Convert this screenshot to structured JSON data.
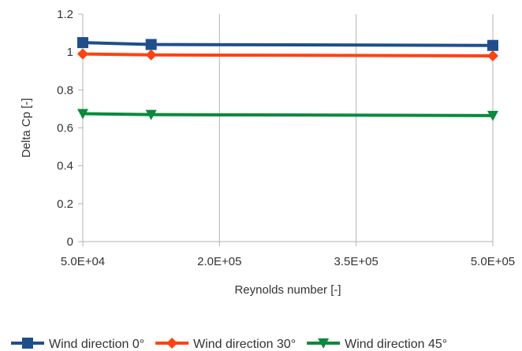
{
  "chart_data": {
    "type": "line",
    "xlabel": "Reynolds number [-]",
    "ylabel": "Delta Cp [-]",
    "xlim": [
      50000,
      500000
    ],
    "ylim": [
      0,
      1.2
    ],
    "x_ticks": [
      50000,
      200000,
      350000,
      500000
    ],
    "x_tick_labels": [
      "5.0E+04",
      "2.0E+05",
      "3.5E+05",
      "5.0E+05"
    ],
    "y_ticks": [
      0,
      0.2,
      0.4,
      0.6,
      0.8,
      1,
      1.2
    ],
    "y_tick_labels": [
      "0",
      "0.2",
      "0.4",
      "0.6",
      "0.8",
      "1",
      "1.2"
    ],
    "grid": "vertical",
    "legend_position": "bottom",
    "series": [
      {
        "name": "Wind direction 0°",
        "color": "#1f4e8c",
        "marker": "square",
        "x": [
          50000,
          125000,
          500000
        ],
        "values": [
          1.05,
          1.04,
          1.035
        ]
      },
      {
        "name": "Wind direction 30°",
        "color": "#ff420e",
        "marker": "diamond",
        "x": [
          50000,
          125000,
          500000
        ],
        "values": [
          0.99,
          0.985,
          0.98
        ]
      },
      {
        "name": "Wind direction 45°",
        "color": "#0a8a3c",
        "marker": "triangle-down",
        "x": [
          50000,
          125000,
          500000
        ],
        "values": [
          0.675,
          0.67,
          0.665
        ]
      }
    ]
  }
}
